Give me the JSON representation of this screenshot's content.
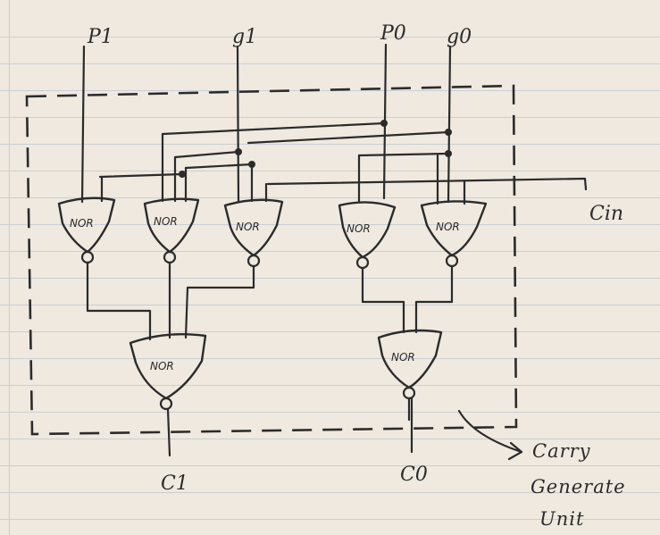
{
  "inputs": {
    "p1": "P1",
    "g1": "g1",
    "p0": "P0",
    "g0": "g0",
    "cin": "Cin"
  },
  "outputs": {
    "c1": "C1",
    "c0": "C0"
  },
  "gate_label": "NOR",
  "caption": {
    "line1": "Carry",
    "line2": "Generate",
    "line3": "Unit"
  }
}
